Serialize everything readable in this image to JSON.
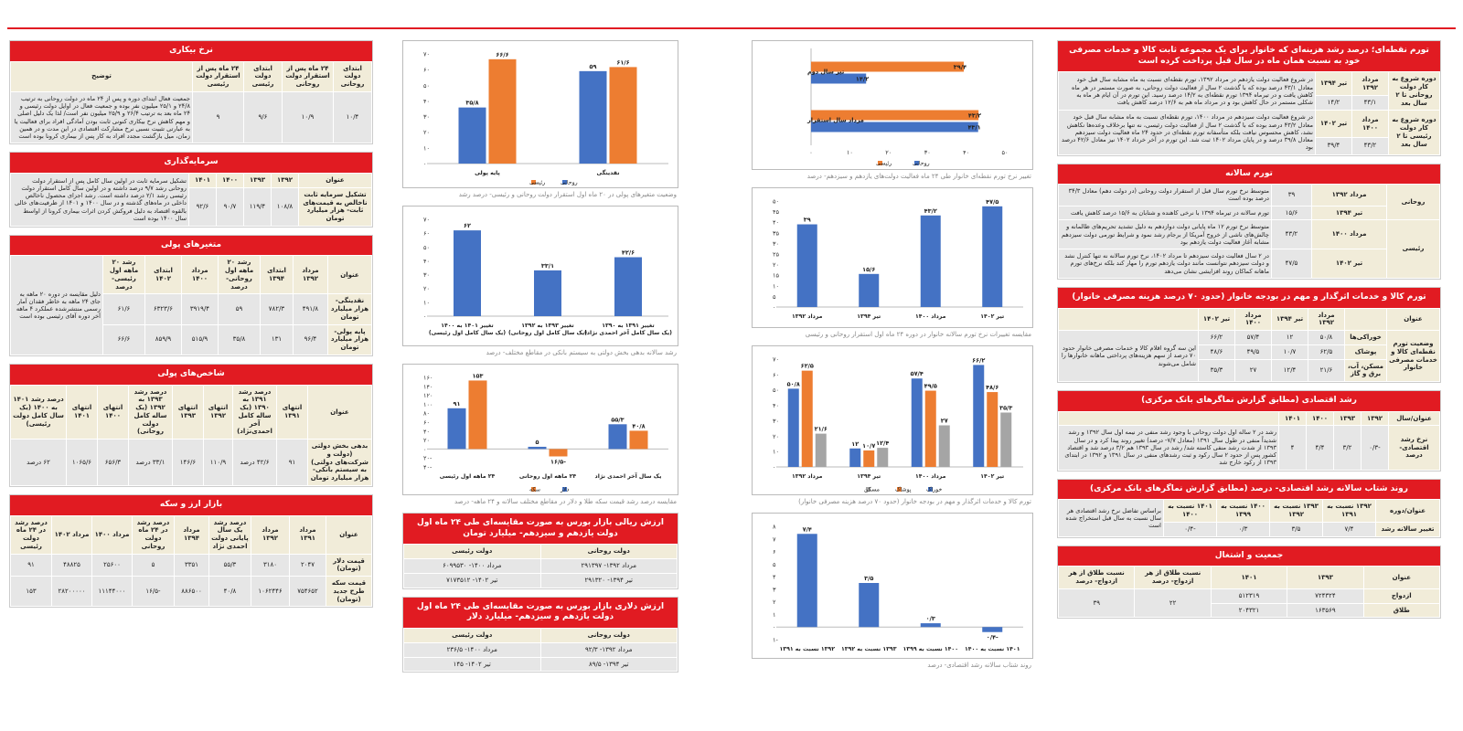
{
  "colors": {
    "accent": "#e11b22",
    "blue": "#4472c4",
    "orange": "#ed7d31",
    "gray": "#a5a5a5",
    "cell": "#e6e6e6",
    "head": "#f1ecd9"
  },
  "col4": {
    "point_inflation": {
      "title": "تورم نقطه‌ای؛ درصد رشد هزینه‌ای که خانوار برای یک مجموعه ثابت کالا و خدمات مصرفی خود به نسبت همان ماه در سال قبل پرداخت کرده است",
      "rows": [
        {
          "period": "دوره شروع به کار دولت روحانی تا ۲ سال بعد",
          "m1": "مرداد ۱۳۹۲",
          "m2": "تیر ۱۳۹۴",
          "v1": "۴۳/۱",
          "v2": "۱۴/۲",
          "desc": "در شروع فعالیت دولت یازدهم در مرداد ۱۳۹۲، تورم نقطه‌ای نسبت به ماه مشابه سال قبل خود معادل ۴۳/۱ درصد بوده که با گذشت ۲ سال از فعالیت دولت روحانی، به صورت مستمر در هر ماه کاهش یافت و در تیرماه ۱۳۹۴ تورم نقطه‌ای به ۱۴/۲ درصد رسید. این تورم در آن ایام هر ماه به شکلی مستمر در حال کاهش بود و در مرداد ماه هم به ۱۲/۶ درصد کاهش یافت"
        },
        {
          "period": "دوره شروع به کار دولت رئیسی تا ۲ سال بعد",
          "m1": "مرداد ۱۴۰۰",
          "m2": "تیر ۱۴۰۲",
          "v1": "۴۳/۲",
          "v2": "۳۹/۴",
          "desc": "در شروع فعالیت دولت سیزدهم در مرداد ۱۴۰۰، تورم نقطه‌ای نسبت به ماه مشابه سال قبل خود معادل ۴۳/۲ درصد بوده که با گذشت ۲ سال از فعالیت دولت رئیسی، نه تنها برخلاف وعده‌ها نکاهش نشد، کاهش محسوس نیافت بلکه متأسفانه تورم نقطه‌ای در حدود ۲۴ ماه فعالیت دولت سیزدهم معادل ۳۹/۸ درصد و در پایان مرداد ۱۴۰۲ ثبت شد. این تورم در آخر خرداد ۱۴۰۲ نیز معادل ۴۲/۶ درصد بود"
        }
      ]
    },
    "annual_inflation": {
      "title": "تورم سالانه",
      "rows": [
        {
          "gov": "روحانی",
          "month": "مرداد ۱۳۹۲",
          "val": "۳۹",
          "desc": "متوسط نرخ تورم سال قبل از استقرار دولت روحانی (در دولت دهم) معادل ۳۴/۳ درصد بوده است"
        },
        {
          "gov": "",
          "month": "تیر ۱۳۹۴",
          "val": "۱۵/۶",
          "desc": "تورم سالانه در تیرماه ۱۳۹۴ با نرخی کاهنده و شتابان به ۱۵/۶ درصد کاهش یافت"
        },
        {
          "gov": "رئیسی",
          "month": "مرداد ۱۴۰۰",
          "val": "۴۳/۲",
          "desc": "متوسط نرخ تورم ۱۲ ماه پایانی دولت دوازدهم به دلیل تشدید تحریم‌های ظالمانه و چالش‌های ناشی از خروج آمریکا از برجام رشد نمود و شرایط تورمی دولت سیزدهم مشابه آغاز فعالیت دولت یازدهم بود"
        },
        {
          "gov": "",
          "month": "تیر ۱۴۰۲",
          "val": "۴۷/۵",
          "desc": "در ۲ سال فعالیت دولت سیزدهم تا مرداد ۱۴۰۲، نرخ تورم سالانه نه تنها کنترل نشد و دولت سیزدهم نتوانست مانند دولت یازدهم تورم را مهار کند بلکه نرخ‌های تورم ماهانه کماکان روند افزایشی نشان می‌دهد"
        }
      ]
    },
    "food_table": {
      "title": "تورم کالا و خدمات اثرگذار و مهم در بودجه خانوار (حدود ۷۰ درصد هزینه مصرفی خانوار)",
      "head": [
        "عنوان",
        "مرداد ۱۳۹۲",
        "تیر ۱۳۹۴",
        "مرداد ۱۴۰۰",
        "تیر ۱۴۰۲",
        ""
      ],
      "rowlabel": "وضعیت تورم نقطه‌ای کالا و خدمات مصرفی خانوار",
      "note": "این سه گروه اقلام کالا و خدمات مصرفی خانوار حدود ۷۰ درصد از سهم هزینه‌های پرداختی ماهانه خانوارها را شامل می‌شوند",
      "rows": [
        {
          "name": "خوراکی‌ها",
          "v": [
            "۵۰/۸",
            "۱۲",
            "۵۷/۴",
            "۶۶/۲"
          ]
        },
        {
          "name": "پوشاک",
          "v": [
            "۶۲/۵",
            "۱۰/۷",
            "۴۹/۵",
            "۴۸/۶"
          ]
        },
        {
          "name": "مسکن، آب، برق و گاز",
          "v": [
            "۲۱/۶",
            "۱۲/۴",
            "۲۷",
            "۳۵/۳"
          ]
        }
      ]
    },
    "growth": {
      "title": "رشد اقتصادی (مطابق گزارش نماگرهای بانک مرکزی)",
      "head": [
        "عنوان/سال",
        "۱۳۹۲",
        "۱۳۹۳",
        "۱۴۰۰",
        "۱۴۰۱",
        ""
      ],
      "rowlabel": "نرخ رشد اقتصادی- درصد",
      "vals": [
        "-۰/۳",
        "۳/۲",
        "۴/۴",
        "۴"
      ],
      "desc": "رشد در ۲ ساله اول دولت روحانی با وجود رشد منفی در نیمه اول سال ۱۳۹۲ و رشد شدیداً منفی در طول سال ۱۳۹۱ (معادل ۷/۷- درصد) تغییر روند پیدا کرد و در سال ۱۳۹۳ از شدت رشد منفی کاسته شد/ رشد در سال ۱۳۹۳ هم ۳/۲ درصد شد و اقتصاد کشور پس از حدود ۲ سال رکود و ثبت رشدهای منفی در سال ۱۳۹۱ و ۱۳۹۲ در ابتدای ۱۳۹۳ از رکود خارج شد"
    },
    "accel": {
      "title": "روند شتاب سالانه رشد اقتصادی- درصد (مطابق گزارش نماگرهای بانک مرکزی)",
      "head": [
        "عنوان/دوره",
        "۱۳۹۲ نسبت به ۱۳۹۱",
        "۱۳۹۳ نسبت به ۱۳۹۲",
        "۱۴۰۰ نسبت به ۱۳۹۹",
        "۱۴۰۱ نسبت به ۱۴۰۰",
        "براساس تفاضل نرخ رشد اقتصادی هر سال نسبت به سال قبل استخراج شده است"
      ],
      "rowlabel": "تغییر سالانه رشد",
      "vals": [
        "۷/۴",
        "۳/۵",
        "۰/۳",
        "-۰/۴"
      ]
    },
    "population": {
      "title": "جمعیت و اشتغال",
      "head": [
        "عنوان",
        "۱۳۹۳",
        "۱۴۰۱",
        "نسبت طلاق از هر ازدواج- درصد",
        "نسبت طلاق از هر ازدواج- درصد"
      ],
      "rows": [
        {
          "name": "ازدواج",
          "a": "۷۲۴۳۲۴",
          "b": "۵۱۲۳۱۹"
        },
        {
          "name": "طلاق",
          "a": "۱۶۳۵۶۹",
          "b": "۲۰۴۳۲۱"
        }
      ],
      "r1": "۲۲",
      "r2": "۳۹"
    }
  },
  "col3": {
    "hbar": {
      "caption": "تغییر نرخ تورم نقطه‌ای خانوار طی ۲۴ ماه فعالیت دولت‌های یازدهم و سیزدهم- درصد",
      "cats": [
        "تیر سال دوم",
        "مرداد سال استقرار"
      ],
      "rouhani": [
        14.2,
        43.1
      ],
      "raisi": [
        39.4,
        43.2
      ],
      "rouhani_lbl": [
        "۱۴/۲",
        "۴۳/۱"
      ],
      "raisi_lbl": [
        "۳۹/۴",
        "۴۳/۲"
      ],
      "ticks": [
        "۰",
        "۱۰",
        "۲۰",
        "۳۰",
        "۴۰",
        "۵۰"
      ],
      "legend": [
        "روحانی",
        "رئیسی"
      ]
    },
    "annual": {
      "caption": "مقایسه تغییرات نرخ تورم سالانه خانوار در دوره ۲۴ ماه اول استقرار روحانی و رئیسی",
      "cats": [
        "مرداد ۱۳۹۲",
        "تیر ۱۳۹۴",
        "مرداد ۱۴۰۰",
        "تیر ۱۴۰۲"
      ],
      "values": [
        39,
        15.6,
        43.2,
        47.5
      ],
      "labels": [
        "۳۹",
        "۱۵/۶",
        "۴۳/۲",
        "۴۷/۵"
      ],
      "ticks": [
        "۰",
        "۵",
        "۱۰",
        "۱۵",
        "۲۰",
        "۲۵",
        "۳۰",
        "۳۵",
        "۴۰",
        "۴۵",
        "۵۰"
      ]
    },
    "goods": {
      "caption": "تورم کالا و خدمات اثرگذار و مهم در بودجه خانوار (حدود ۷۰ درصد هزینه مصرفی خانوار)",
      "cats": [
        "مرداد ۱۳۹۲",
        "تیر ۱۳۹۴",
        "مرداد ۱۴۰۰",
        "تیر ۱۴۰۲"
      ],
      "food": [
        50.8,
        12,
        57.4,
        66.2
      ],
      "cloth": [
        62.5,
        10.7,
        49.5,
        48.6
      ],
      "house": [
        21.6,
        12.4,
        27,
        35.3
      ],
      "food_lbl": [
        "۵۰/۸",
        "۱۲",
        "۵۷/۴",
        "۶۶/۲"
      ],
      "cloth_lbl": [
        "۶۲/۵",
        "۱۰/۷",
        "۴۹/۵",
        "۴۸/۶"
      ],
      "house_lbl": [
        "۲۱/۶",
        "۱۲/۴",
        "۲۷",
        "۳۵/۳"
      ],
      "ticks": [
        "۰",
        "۱۰",
        "۲۰",
        "۳۰",
        "۴۰",
        "۵۰",
        "۶۰",
        "۷۰"
      ],
      "legend": [
        "خوراک",
        "پوشاک",
        "مسکن"
      ]
    },
    "accel": {
      "caption": "روند شتاب سالانه رشد اقتصادی- درصد",
      "cats": [
        "۱۳۹۲ نسبت به ۱۳۹۱",
        "۱۳۹۳ نسبت به ۱۳۹۲",
        "۱۴۰۰ نسبت به ۱۳۹۹",
        "۱۴۰۱ نسبت به ۱۴۰۰"
      ],
      "values": [
        7.4,
        3.5,
        0.3,
        -0.4
      ],
      "labels": [
        "۷/۴",
        "۳/۵",
        "۰/۳",
        "-۰/۴"
      ],
      "ticks": [
        "-۱",
        "۰",
        "۱",
        "۲",
        "۳",
        "۴",
        "۵",
        "۶",
        "۷",
        "۸"
      ]
    }
  },
  "col2": {
    "money": {
      "caption": "وضعیت متغیرهای پولی در ۲۰ ماه اول استقرار دولت روحانی و رئیسی- درصد رشد",
      "cats": [
        "پایه پولی",
        "نقدینگی"
      ],
      "rouhani": [
        35.8,
        59
      ],
      "raisi": [
        66.6,
        61.6
      ],
      "rouhani_lbl": [
        "۳۵/۸",
        "۵۹"
      ],
      "raisi_lbl": [
        "۶۶/۶",
        "۶۱/۶"
      ],
      "ticks": [
        "۰",
        "۱۰",
        "۲۰",
        "۳۰",
        "۴۰",
        "۵۰",
        "۶۰",
        "۷۰"
      ],
      "legend": [
        "روحانی",
        "رئیسی"
      ]
    },
    "debt": {
      "caption": "رشد سالانه بدهی بخش دولتی به سیستم بانکی در مقاطع مختلف- درصد",
      "cats": [
        "تغییر ۱۴۰۱ به ۱۴۰۰ (یک سال کامل اول رئیسی)",
        "تغییر ۱۳۹۳ به ۱۳۹۲ (یک سال کامل اول روحانی)",
        "تغییر ۱۳۹۱ به ۱۳۹۰ (یک سال کامل آخر احمدی نژاد)"
      ],
      "values": [
        62,
        33.1,
        42.6
      ],
      "labels": [
        "۶۲",
        "۳۳/۱",
        "۴۲/۶"
      ],
      "ticks": [
        "۰",
        "۱۰",
        "۲۰",
        "۳۰",
        "۴۰",
        "۵۰",
        "۶۰",
        "۷۰"
      ]
    },
    "gold": {
      "caption": "مقایسه درصد رشد قیمت سکه طلا و دلار در مقاطع مختلف سالانه و ۲۴ ماهه- درصد",
      "cats": [
        "۲۴ ماهه اول رئیسی",
        "۲۴ ماهه اول روحانی",
        "یک سال آخر احمدی نژاد"
      ],
      "dollar": [
        91,
        5,
        55.3
      ],
      "coin": [
        153,
        -16.5,
        40.8
      ],
      "dollar_lbl": [
        "۹۱",
        "۵",
        "۵۵/۳"
      ],
      "coin_lbl": [
        "۱۵۳",
        "-۱۶/۵",
        "۴۰/۸"
      ],
      "ticks": [
        "-۴۰",
        "-۲۰",
        "۰",
        "۲۰",
        "۴۰",
        "۶۰",
        "۸۰",
        "۱۰۰",
        "۱۲۰",
        "۱۴۰",
        "۱۶۰"
      ],
      "legend": [
        "دلار",
        "سکه"
      ]
    },
    "bourse_rial": {
      "title": "ارزش ریالی بازار بورس به صورت مقایسه‌ای طی ۲۴ ماه اول دولت یازدهم و سیزدهم- میلیارد تومان",
      "head": [
        "دولت روحانی",
        "دولت رئیسی"
      ],
      "rows": [
        [
          "مرداد ۱۳۹۲- ۲۹۱۳۹۷",
          "مرداد ۱۴۰۰- ۶۰۹۹۵۳۰"
        ],
        [
          "تیر ۱۳۹۴- ۲۹۱۳۲۰",
          "تیر ۱۴۰۲- ۷۱۷۳۵۱۲"
        ]
      ]
    },
    "bourse_usd": {
      "title": "ارزش دلاری بازار بورس به صورت مقایسه‌ای طی ۲۴ ماه اول دولت یازدهم و سیزدهم- میلیارد دلار",
      "head": [
        "دولت روحانی",
        "دولت رئیسی"
      ],
      "rows": [
        [
          "مرداد ۱۳۹۲- ۹۲/۳",
          "مرداد ۱۴۰۰- ۲۳۶/۵"
        ],
        [
          "تیر ۱۳۹۴- ۸۹/۵",
          "تیر ۱۴۰۲- ۱۴۵"
        ]
      ]
    }
  },
  "col1": {
    "unemp": {
      "title": "نرخ بیکاری",
      "head": [
        "ابتدای دولت روحانی",
        "۲۴ ماه پس از استقرار دولت روحانی",
        "ابتدای دولت رئیسی",
        "۲۴ ماه پس از استقرار دولت رئیسی",
        "توضیح"
      ],
      "vals": [
        "۱۰/۴",
        "۱۰/۹",
        "۹/۶",
        "۹"
      ],
      "desc": "جمعیت فعال ابتدای دوره و پس از ۲۴ ماه در دولت روحانی به ترتیب ۲۴/۸ و ۲۵/۱ میلیون نفر بوده و جمعیت فعال در اوایل دولت رئیسی و ۲۴ ماه بعد به ترتیب ۲۶/۴ و ۲۵/۹ میلیون نفر است/ لذا یک دلیل اصلی و مهم کاهش نرخ بیکاری کنونی ثابت بودن آمادگی افراد برای فعالیت یا به عبارتی تثبیت نسبی نرخ مشارکت اقتصادی در این مدت و در همین زمان، میل بازگشت مجدد افراد به کار پس از بیماری کرونا بوده است"
    },
    "invest": {
      "title": "سرمایه‌گذاری",
      "head": [
        "عنوان",
        "۱۳۹۲",
        "۱۳۹۳",
        "۱۴۰۰",
        "۱۴۰۱",
        ""
      ],
      "name": "تشکیل سرمایه ثابت ناخالص به قیمت‌های ثابت- هزار میلیارد تومان",
      "vals": [
        "۱۰۸/۸",
        "۱۱۹/۴",
        "۹۰/۷",
        "۹۲/۶"
      ],
      "desc": "تشکیل سرمایه ثابت در اولین سال کامل پس از استقرار دولت روحانی رشد ۹/۷ درصد داشته و در اولین سال کامل استقرار دولت رئیسی رشد ۲/۱ درصد داشته است. رشد اجزای محصول ناخالص داخلی در ماه‌های گذشته و در سال ۱۴۰۰ و ۱۴۰۱ از ظرفیت‌های خالی بالقوه اقتصاد به دلیل فروکش کردن اثرات بیماری کرونا از اواسط سال ۱۴۰۰ بوده است"
    },
    "money": {
      "title": "متغیرهای پولی",
      "head": [
        "عنوان",
        "مرداد ۱۳۹۲",
        "ابتدای ۱۳۹۴",
        "رشد ۲۰ ماهه اول روحانی- درصد",
        "مرداد ۱۴۰۰",
        "ابتدای ۱۴۰۲",
        "رشد ۲۰ ماهه اول رئیسی- درصد",
        ""
      ],
      "rows": [
        {
          "name": "نقدینگی- هزار میلیارد تومان",
          "v": [
            "۴۹۱/۸",
            "۷۸۲/۳",
            "۵۹",
            "۳۹۱۹/۴",
            "۶۳۲۳/۶",
            "۶۱/۶"
          ]
        },
        {
          "name": "پایه پولی- هزار میلیارد تومان",
          "v": [
            "۹۶/۴",
            "۱۳۱",
            "۳۵/۸",
            "۵۱۵/۹",
            "۸۵۹/۹",
            "۶۶/۶"
          ]
        }
      ],
      "desc": "دلیل مقایسه در دوره ۲۰ ماهه به جای ۲۴ ماهه به خاطر فقدان آمار رسمی منتشرشده عملکرد ۴ ماهه آخر دوره آقای رئیسی بوده است"
    },
    "debt": {
      "title": "شاخص‌های پولی",
      "head": [
        "عنوان",
        "انتهای ۱۳۹۱",
        "درصد رشد ۱۳۹۱ به ۱۳۹۰ (یک ساله کامل آخر احمدی‌نژاد)",
        "انتهای ۱۳۹۲",
        "انتهای ۱۳۹۳",
        "درصد رشد ۱۳۹۳ به ۱۳۹۲ (یک ساله کامل دولت روحانی)",
        "انتهای ۱۴۰۰",
        "انتهای ۱۴۰۱",
        "درصد رشد ۱۴۰۱ به ۱۴۰۰ (یک سال کامل دولت رئیسی)"
      ],
      "name": "بدهی بخش دولتی (دولت و شرکت‌های دولتی) به سیستم بانکی- هزار میلیارد تومان",
      "vals": [
        "۹۱",
        "۴۲/۶ درصد",
        "۱۱۰/۹",
        "۱۴۶/۶",
        "۳۳/۱ درصد",
        "۶۵۶/۳",
        "۱۰۶۵/۶",
        "۶۲ درصد"
      ]
    },
    "fx": {
      "title": "بازار ارز و سکه",
      "head": [
        "عنوان",
        "مرداد ۱۳۹۱",
        "مرداد ۱۳۹۲",
        "درصد رشد یک سال پایانی دولت احمدی نژاد",
        "مرداد ۱۳۹۴",
        "درصد رشد در ۲۴ ماه دولت روحانی",
        "مرداد ۱۴۰۰",
        "مرداد ۱۴۰۲",
        "درصد رشد در ۲۴ ماه دولت رئیسی"
      ],
      "rows": [
        {
          "name": "قیمت دلار (تومان)",
          "v": [
            "۲۰۴۷",
            "۳۱۸۰",
            "۵۵/۳",
            "۳۳۵۱",
            "۵",
            "۲۵۶۰۰",
            "۴۸۸۲۵",
            "۹۱"
          ]
        },
        {
          "name": "قیمت سکه طرح جدید (تومان)",
          "v": [
            "۷۵۴۶۵۲",
            "۱۰۶۲۴۴۶",
            "۴۰/۸",
            "۸۸۶۵۰۰",
            "-۱۶/۵",
            "۱۱۱۴۴۰۰۰",
            "۲۸۲۰۰۰۰۰",
            "۱۵۳"
          ]
        }
      ]
    }
  }
}
